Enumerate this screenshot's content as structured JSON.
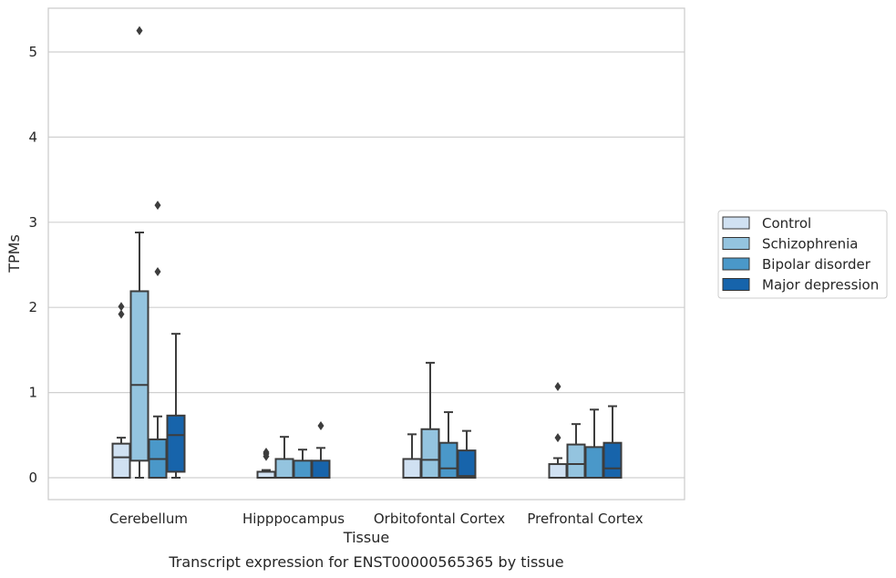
{
  "chart_data": {
    "type": "box",
    "title": "",
    "caption": "Transcript expression for ENST00000565365 by tissue",
    "xlabel": "Tissue",
    "ylabel": "TPMs",
    "ylim": [
      -0.26,
      5.5
    ],
    "yticks": [
      0,
      1,
      2,
      3,
      4,
      5
    ],
    "grid": "horizontal",
    "legend_position": "right",
    "categories": [
      "Cerebellum",
      "Hipppocampus",
      "Orbitofontal Cortex",
      "Prefrontal Cortex"
    ],
    "series": [
      {
        "name": "Control",
        "color": "#d0e1f2",
        "boxes": [
          {
            "min": 0.0,
            "q1": 0.0,
            "median": 0.24,
            "q3": 0.4,
            "max": 0.47,
            "outliers": [
              1.92,
              2.01
            ]
          },
          {
            "min": 0.0,
            "q1": 0.0,
            "median": 0.0,
            "q3": 0.07,
            "max": 0.09,
            "outliers": [
              0.25,
              0.28,
              0.3
            ]
          },
          {
            "min": 0.0,
            "q1": 0.0,
            "median": 0.0,
            "q3": 0.22,
            "max": 0.51,
            "outliers": []
          },
          {
            "min": 0.0,
            "q1": 0.0,
            "median": 0.0,
            "q3": 0.16,
            "max": 0.23,
            "outliers": [
              0.47,
              1.07
            ]
          }
        ]
      },
      {
        "name": "Schizophrenia",
        "color": "#94c4df",
        "boxes": [
          {
            "min": 0.0,
            "q1": 0.2,
            "median": 1.09,
            "q3": 2.19,
            "max": 2.88,
            "outliers": [
              5.25
            ]
          },
          {
            "min": 0.0,
            "q1": 0.0,
            "median": 0.0,
            "q3": 0.22,
            "max": 0.48,
            "outliers": []
          },
          {
            "min": 0.0,
            "q1": 0.0,
            "median": 0.21,
            "q3": 0.57,
            "max": 1.35,
            "outliers": []
          },
          {
            "min": 0.0,
            "q1": 0.0,
            "median": 0.16,
            "q3": 0.39,
            "max": 0.63,
            "outliers": []
          }
        ]
      },
      {
        "name": "Bipolar disorder",
        "color": "#4a98c9",
        "boxes": [
          {
            "min": 0.0,
            "q1": 0.0,
            "median": 0.22,
            "q3": 0.45,
            "max": 0.72,
            "outliers": [
              2.42,
              3.2
            ]
          },
          {
            "min": 0.0,
            "q1": 0.0,
            "median": 0.0,
            "q3": 0.2,
            "max": 0.33,
            "outliers": []
          },
          {
            "min": 0.0,
            "q1": 0.0,
            "median": 0.11,
            "q3": 0.41,
            "max": 0.77,
            "outliers": []
          },
          {
            "min": 0.0,
            "q1": 0.0,
            "median": 0.0,
            "q3": 0.36,
            "max": 0.8,
            "outliers": []
          }
        ]
      },
      {
        "name": "Major depression",
        "color": "#1764ab",
        "boxes": [
          {
            "min": 0.0,
            "q1": 0.07,
            "median": 0.5,
            "q3": 0.73,
            "max": 1.69,
            "outliers": []
          },
          {
            "min": 0.0,
            "q1": 0.0,
            "median": 0.0,
            "q3": 0.2,
            "max": 0.35,
            "outliers": [
              0.61
            ]
          },
          {
            "min": 0.0,
            "q1": 0.0,
            "median": 0.02,
            "q3": 0.32,
            "max": 0.55,
            "outliers": []
          },
          {
            "min": 0.0,
            "q1": 0.0,
            "median": 0.11,
            "q3": 0.41,
            "max": 0.84,
            "outliers": []
          }
        ]
      }
    ]
  }
}
